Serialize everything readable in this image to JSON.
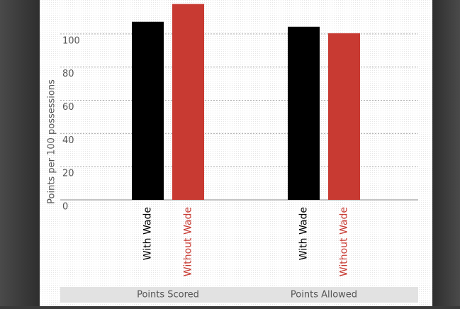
{
  "chart_data": {
    "type": "bar",
    "y_label": "Points per 100 possessions",
    "categories": [
      "Points Scored",
      "Points Allowed"
    ],
    "series": [
      {
        "name": "With Wade",
        "color": "#000000",
        "values": [
          107.3,
          104.3
        ]
      },
      {
        "name": "Without Wade",
        "color": "#c83a32",
        "values": [
          118,
          100.4
        ]
      }
    ],
    "ylim": [
      0,
      120
    ],
    "yticks": [
      0,
      20,
      40,
      60,
      80,
      100
    ],
    "grid": true
  }
}
